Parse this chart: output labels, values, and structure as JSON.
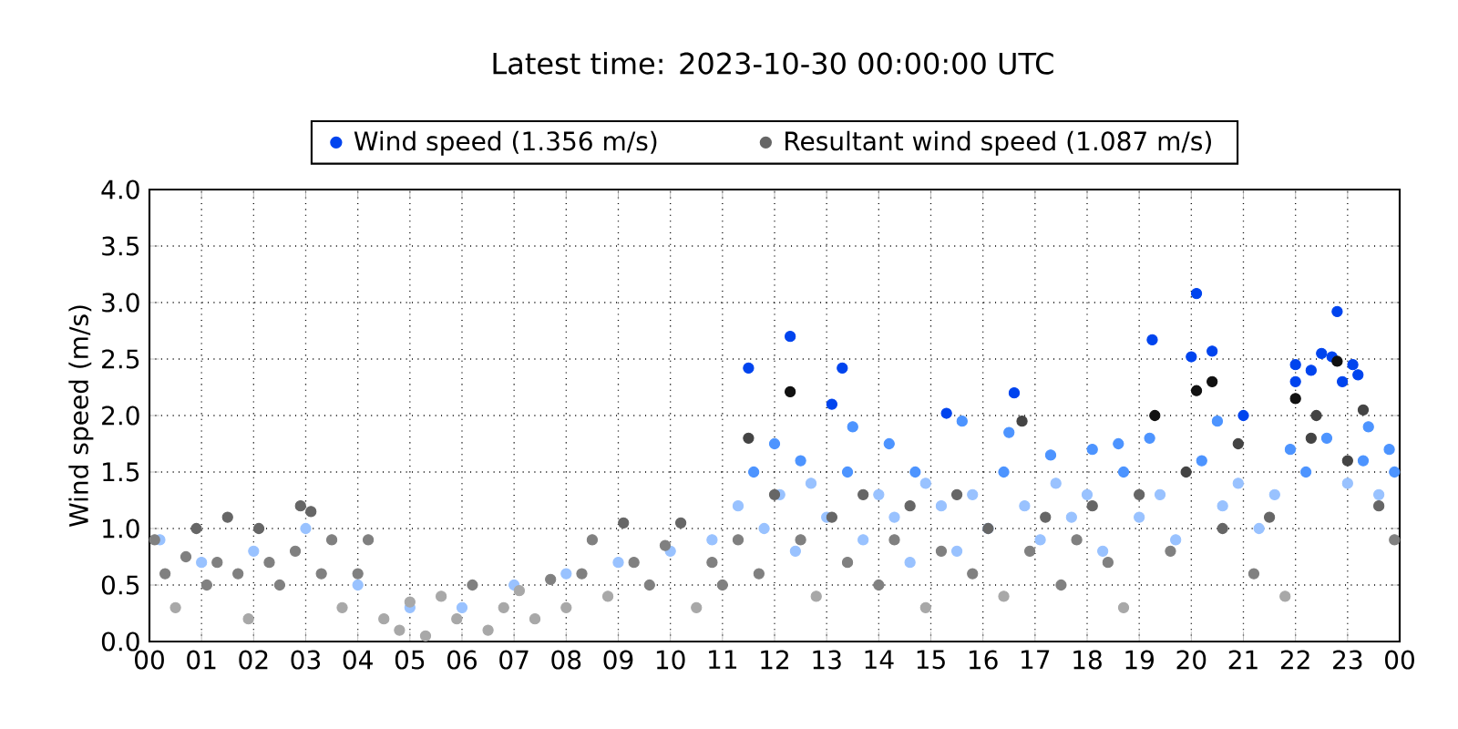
{
  "chart_data": {
    "type": "scatter",
    "title": "Latest time: 2023-10-30 00:00:00 UTC",
    "ylabel": "Wind speed (m/s)",
    "xlim": [
      0,
      24
    ],
    "xticks": [
      {
        "value": 0,
        "label": "00"
      },
      {
        "value": 1,
        "label": "01"
      },
      {
        "value": 2,
        "label": "02"
      },
      {
        "value": 3,
        "label": "03"
      },
      {
        "value": 4,
        "label": "04"
      },
      {
        "value": 5,
        "label": "05"
      },
      {
        "value": 6,
        "label": "06"
      },
      {
        "value": 7,
        "label": "07"
      },
      {
        "value": 8,
        "label": "08"
      },
      {
        "value": 9,
        "label": "09"
      },
      {
        "value": 10,
        "label": "10"
      },
      {
        "value": 11,
        "label": "11"
      },
      {
        "value": 12,
        "label": "12"
      },
      {
        "value": 13,
        "label": "13"
      },
      {
        "value": 14,
        "label": "14"
      },
      {
        "value": 15,
        "label": "15"
      },
      {
        "value": 16,
        "label": "16"
      },
      {
        "value": 17,
        "label": "17"
      },
      {
        "value": 18,
        "label": "18"
      },
      {
        "value": 19,
        "label": "19"
      },
      {
        "value": 20,
        "label": "20"
      },
      {
        "value": 21,
        "label": "21"
      },
      {
        "value": 22,
        "label": "22"
      },
      {
        "value": 23,
        "label": "23"
      },
      {
        "value": 24,
        "label": "00"
      }
    ],
    "ylim": [
      0,
      4
    ],
    "yticks": [
      {
        "value": 0,
        "label": "0.0"
      },
      {
        "value": 0.5,
        "label": "0.5"
      },
      {
        "value": 1,
        "label": "1.0"
      },
      {
        "value": 1.5,
        "label": "1.5"
      },
      {
        "value": 2,
        "label": "2.0"
      },
      {
        "value": 2.5,
        "label": "2.5"
      },
      {
        "value": 3,
        "label": "3.0"
      },
      {
        "value": 3.5,
        "label": "3.5"
      },
      {
        "value": 4,
        "label": "4.0"
      }
    ],
    "grid": true,
    "legend": "top",
    "marker": "circle",
    "series": [
      {
        "name": "Wind speed (1.356 m/s)",
        "color": "#0044ee",
        "x": [
          0.2,
          1,
          2,
          3,
          4,
          5,
          6,
          7,
          8,
          9,
          10,
          10.8,
          11.5,
          12.3,
          13.3,
          13.1,
          12.0,
          12.5,
          13.5,
          14.2,
          14.7,
          15.3,
          15.6,
          16.6,
          16.5,
          17.3,
          18.1,
          18.6,
          19.25,
          19.2,
          20.1,
          20.0,
          20.4,
          20.5,
          21.0,
          22.0,
          22.0,
          22.3,
          22.5,
          22.7,
          22.8,
          22.9,
          23.1,
          23.2,
          23.4,
          23.8,
          11.3,
          11.6,
          11.8,
          12.1,
          12.4,
          12.7,
          13.0,
          13.4,
          13.7,
          14.0,
          14.3,
          14.6,
          14.9,
          15.2,
          15.5,
          15.8,
          16.1,
          16.4,
          16.8,
          17.1,
          17.4,
          17.7,
          18.0,
          18.3,
          18.7,
          19.0,
          19.4,
          19.7,
          20.2,
          20.6,
          20.9,
          21.3,
          21.6,
          21.9,
          22.2,
          22.6,
          23.0,
          23.3,
          23.6,
          23.9
        ],
        "values": [
          0.9,
          0.7,
          0.8,
          1.0,
          0.5,
          0.3,
          0.3,
          0.5,
          0.6,
          0.7,
          0.8,
          0.9,
          2.42,
          2.7,
          2.42,
          2.1,
          1.75,
          1.6,
          1.9,
          1.75,
          1.5,
          2.02,
          1.95,
          2.2,
          1.85,
          1.65,
          1.7,
          1.75,
          2.67,
          1.8,
          3.08,
          2.52,
          2.57,
          1.95,
          2.0,
          2.45,
          2.3,
          2.4,
          2.55,
          2.52,
          2.92,
          2.3,
          2.45,
          2.36,
          1.9,
          1.7,
          1.2,
          1.5,
          1.0,
          1.3,
          0.8,
          1.4,
          1.1,
          1.5,
          0.9,
          1.3,
          1.1,
          0.7,
          1.4,
          1.2,
          0.8,
          1.3,
          1.0,
          1.5,
          1.2,
          0.9,
          1.4,
          1.1,
          1.3,
          0.8,
          1.5,
          1.1,
          1.3,
          0.9,
          1.6,
          1.2,
          1.4,
          1.0,
          1.3,
          1.7,
          1.5,
          1.8,
          1.4,
          1.6,
          1.3,
          1.5
        ],
        "colors": [
          "#99c2ff",
          "#99c2ff",
          "#99c2ff",
          "#99c2ff",
          "#99c2ff",
          "#99c2ff",
          "#99c2ff",
          "#99c2ff",
          "#99c2ff",
          "#99c2ff",
          "#99c2ff",
          "#99c2ff",
          "#0044ee",
          "#0044ee",
          "#0044ee",
          "#0044ee",
          "#4d94ff",
          "#4d94ff",
          "#4d94ff",
          "#4d94ff",
          "#4d94ff",
          "#0044ee",
          "#4d94ff",
          "#0044ee",
          "#4d94ff",
          "#4d94ff",
          "#4d94ff",
          "#4d94ff",
          "#0044ee",
          "#4d94ff",
          "#0044ee",
          "#0044ee",
          "#0044ee",
          "#4d94ff",
          "#0044ee",
          "#0044ee",
          "#0044ee",
          "#0044ee",
          "#0044ee",
          "#0044ee",
          "#0044ee",
          "#0044ee",
          "#0044ee",
          "#0044ee",
          "#4d94ff",
          "#4d94ff",
          "#99c2ff",
          "#4d94ff",
          "#99c2ff",
          "#99c2ff",
          "#99c2ff",
          "#99c2ff",
          "#99c2ff",
          "#4d94ff",
          "#99c2ff",
          "#99c2ff",
          "#99c2ff",
          "#99c2ff",
          "#99c2ff",
          "#99c2ff",
          "#99c2ff",
          "#99c2ff",
          "#99c2ff",
          "#4d94ff",
          "#99c2ff",
          "#99c2ff",
          "#99c2ff",
          "#99c2ff",
          "#99c2ff",
          "#99c2ff",
          "#4d94ff",
          "#99c2ff",
          "#99c2ff",
          "#99c2ff",
          "#4d94ff",
          "#99c2ff",
          "#99c2ff",
          "#99c2ff",
          "#99c2ff",
          "#4d94ff",
          "#4d94ff",
          "#4d94ff",
          "#99c2ff",
          "#4d94ff",
          "#99c2ff",
          "#4d94ff"
        ]
      },
      {
        "name": "Resultant wind speed (1.087 m/s)",
        "color": "#666666",
        "x": [
          0.1,
          0.3,
          0.5,
          0.7,
          0.9,
          1.1,
          1.3,
          1.5,
          1.7,
          1.9,
          2.1,
          2.3,
          2.5,
          2.8,
          2.9,
          3.1,
          3.3,
          3.5,
          3.7,
          4.0,
          4.2,
          4.5,
          4.8,
          5.0,
          5.3,
          5.6,
          5.9,
          6.2,
          6.5,
          6.8,
          7.1,
          7.4,
          7.7,
          8.0,
          8.3,
          8.5,
          8.8,
          9.1,
          9.3,
          9.6,
          9.9,
          10.2,
          10.5,
          10.8,
          11.0,
          11.5,
          11.3,
          11.7,
          12.0,
          12.3,
          12.5,
          12.8,
          13.1,
          13.4,
          13.7,
          14.0,
          14.3,
          14.6,
          14.9,
          15.2,
          15.5,
          15.8,
          16.1,
          16.4,
          16.75,
          16.9,
          17.2,
          17.5,
          17.8,
          18.1,
          18.4,
          18.7,
          19.0,
          19.3,
          19.6,
          19.9,
          20.1,
          20.4,
          20.6,
          20.9,
          21.2,
          21.5,
          21.8,
          22.0,
          22.3,
          22.4,
          22.8,
          23.0,
          23.3,
          23.6,
          23.9
        ],
        "values": [
          0.9,
          0.6,
          0.3,
          0.75,
          1.0,
          0.5,
          0.7,
          1.1,
          0.6,
          0.2,
          1.0,
          0.7,
          0.5,
          0.8,
          1.2,
          1.15,
          0.6,
          0.9,
          0.3,
          0.6,
          0.9,
          0.2,
          0.1,
          0.35,
          0.05,
          0.4,
          0.2,
          0.5,
          0.1,
          0.3,
          0.45,
          0.2,
          0.55,
          0.3,
          0.6,
          0.9,
          0.4,
          1.05,
          0.7,
          0.5,
          0.85,
          1.05,
          0.3,
          0.7,
          0.5,
          1.8,
          0.9,
          0.6,
          1.3,
          2.21,
          0.9,
          0.4,
          1.1,
          0.7,
          1.3,
          0.5,
          0.9,
          1.2,
          0.3,
          0.8,
          1.3,
          0.6,
          1.0,
          0.4,
          1.95,
          0.8,
          1.1,
          0.5,
          0.9,
          1.2,
          0.7,
          0.3,
          1.3,
          2.0,
          0.8,
          1.5,
          2.22,
          2.3,
          1.0,
          1.75,
          0.6,
          1.1,
          0.4,
          2.15,
          1.8,
          2.0,
          2.48,
          1.6,
          2.05,
          1.2,
          0.9
        ],
        "colors": [
          "#808080",
          "#808080",
          "#a8a8a8",
          "#808080",
          "#666666",
          "#808080",
          "#808080",
          "#666666",
          "#808080",
          "#a8a8a8",
          "#666666",
          "#808080",
          "#808080",
          "#808080",
          "#666666",
          "#666666",
          "#808080",
          "#808080",
          "#a8a8a8",
          "#808080",
          "#808080",
          "#a8a8a8",
          "#a8a8a8",
          "#a8a8a8",
          "#a8a8a8",
          "#a8a8a8",
          "#a8a8a8",
          "#808080",
          "#a8a8a8",
          "#a8a8a8",
          "#a8a8a8",
          "#a8a8a8",
          "#808080",
          "#a8a8a8",
          "#808080",
          "#808080",
          "#a8a8a8",
          "#666666",
          "#808080",
          "#808080",
          "#808080",
          "#666666",
          "#a8a8a8",
          "#808080",
          "#808080",
          "#444444",
          "#808080",
          "#808080",
          "#666666",
          "#111111",
          "#808080",
          "#a8a8a8",
          "#666666",
          "#808080",
          "#666666",
          "#808080",
          "#808080",
          "#666666",
          "#a8a8a8",
          "#808080",
          "#666666",
          "#808080",
          "#666666",
          "#a8a8a8",
          "#444444",
          "#808080",
          "#666666",
          "#808080",
          "#808080",
          "#666666",
          "#808080",
          "#a8a8a8",
          "#666666",
          "#111111",
          "#808080",
          "#444444",
          "#111111",
          "#111111",
          "#666666",
          "#444444",
          "#808080",
          "#666666",
          "#a8a8a8",
          "#111111",
          "#444444",
          "#444444",
          "#111111",
          "#444444",
          "#444444",
          "#666666",
          "#808080"
        ]
      }
    ]
  }
}
